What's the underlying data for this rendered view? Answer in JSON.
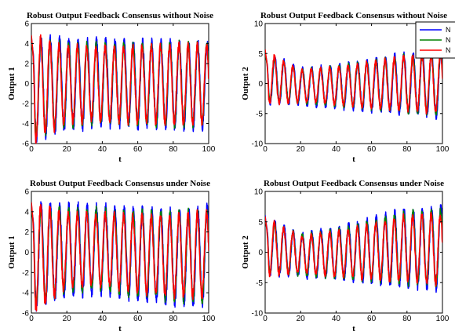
{
  "chart_data": [
    {
      "type": "line",
      "title": "Robust Output Feedback Consensus without Noise",
      "xlabel": "t",
      "ylabel": "Output 1",
      "xlim": [
        0,
        100
      ],
      "ylim": [
        -6,
        6
      ],
      "xticks": [
        0,
        20,
        40,
        60,
        80,
        100
      ],
      "yticks": [
        -6,
        -4,
        -2,
        0,
        2,
        4,
        6
      ],
      "legend": null,
      "model": {
        "period": 5.2,
        "decay": 0.05,
        "amp0": 5.0,
        "ampEnd": 3.9
      },
      "series": [
        {
          "color": "#0000ff",
          "peaks": [
            4.5,
            4.4,
            4.3,
            4.2,
            4.1,
            4.0
          ],
          "troughs": [
            -5.5,
            -4.5,
            -4.2,
            -4.3,
            -4.4,
            -4.3
          ],
          "phase": 0.3
        },
        {
          "color": "#008000",
          "peaks": [
            4.2,
            3.9,
            3.8,
            3.8,
            3.9,
            3.9
          ],
          "troughs": [
            -5.3,
            -4.1,
            -3.9,
            -4.0,
            -4.1,
            -4.0
          ],
          "phase": 0.15
        },
        {
          "color": "#ff0000",
          "peaks": [
            4.6,
            3.7,
            3.6,
            3.6,
            3.8,
            3.8
          ],
          "troughs": [
            -5.8,
            -3.8,
            -3.6,
            -3.8,
            -3.9,
            -3.9
          ],
          "phase": 0.0
        }
      ]
    },
    {
      "type": "line",
      "title": "Robust Output Feedback Consensus without Noise",
      "xlabel": "t",
      "ylabel": "Output 2",
      "xlim": [
        0,
        100
      ],
      "ylim": [
        -10,
        10
      ],
      "xticks": [
        0,
        20,
        40,
        60,
        80,
        100
      ],
      "yticks": [
        -10,
        -5,
        0,
        5,
        10
      ],
      "legend": {
        "placement": "top-right",
        "entries": [
          "N",
          "N",
          "N"
        ]
      },
      "model": {
        "period": 5.2
      },
      "series": [
        {
          "color": "#0000ff",
          "peaks": [
            5.2,
            2.5,
            3.0,
            4.0,
            5.0,
            5.5
          ],
          "troughs": [
            -3.2,
            -3.5,
            -4.0,
            -4.5,
            -5.0,
            -5.5
          ],
          "phase": 0.3
        },
        {
          "color": "#008000",
          "peaks": [
            5.0,
            2.3,
            2.8,
            3.7,
            4.6,
            5.1
          ],
          "troughs": [
            -3.0,
            -3.2,
            -3.6,
            -4.1,
            -4.6,
            -5.0
          ],
          "phase": 0.15
        },
        {
          "color": "#ff0000",
          "peaks": [
            5.4,
            2.2,
            2.7,
            3.5,
            4.4,
            4.9
          ],
          "troughs": [
            -3.4,
            -3.0,
            -3.4,
            -3.9,
            -4.4,
            -4.8
          ],
          "phase": 0.0
        }
      ]
    },
    {
      "type": "line",
      "title": "Robust Output Feedback Consensus under Noise",
      "xlabel": "t",
      "ylabel": "Output 1",
      "xlim": [
        0,
        100
      ],
      "ylim": [
        -6,
        6
      ],
      "xticks": [
        0,
        20,
        40,
        60,
        80,
        100
      ],
      "yticks": [
        -6,
        -4,
        -2,
        0,
        2,
        4,
        6
      ],
      "legend": null,
      "model": {
        "period": 5.2
      },
      "series": [
        {
          "color": "#0000ff",
          "peaks": [
            4.6,
            4.6,
            4.5,
            4.3,
            4.0,
            4.4
          ],
          "troughs": [
            -5.6,
            -4.2,
            -4.0,
            -4.6,
            -5.0,
            -5.2
          ],
          "phase": 0.3
        },
        {
          "color": "#008000",
          "peaks": [
            4.3,
            4.2,
            4.1,
            3.9,
            3.8,
            4.0
          ],
          "troughs": [
            -5.3,
            -3.8,
            -3.6,
            -4.2,
            -4.6,
            -4.8
          ],
          "phase": 0.15
        },
        {
          "color": "#ff0000",
          "peaks": [
            4.7,
            3.8,
            3.7,
            3.5,
            3.5,
            3.9
          ],
          "troughs": [
            -5.9,
            -3.4,
            -3.2,
            -3.8,
            -4.2,
            -4.4
          ],
          "phase": 0.0
        }
      ]
    },
    {
      "type": "line",
      "title": "Robust Output Feedback Consensus under Noise",
      "xlabel": "t",
      "ylabel": "Output 2",
      "xlim": [
        0,
        100
      ],
      "ylim": [
        -10,
        10
      ],
      "xticks": [
        0,
        20,
        40,
        60,
        80,
        100
      ],
      "yticks": [
        -10,
        -5,
        0,
        5,
        10
      ],
      "legend": null,
      "model": {
        "period": 5.2
      },
      "series": [
        {
          "color": "#0000ff",
          "peaks": [
            5.8,
            3.0,
            4.0,
            5.5,
            7.0,
            7.4
          ],
          "troughs": [
            -3.5,
            -4.0,
            -4.5,
            -5.0,
            -5.5,
            -6.2
          ],
          "phase": 0.3
        },
        {
          "color": "#008000",
          "peaks": [
            5.5,
            2.8,
            3.6,
            5.0,
            6.4,
            6.8
          ],
          "troughs": [
            -3.3,
            -3.7,
            -4.1,
            -4.6,
            -5.0,
            -5.6
          ],
          "phase": 0.15
        },
        {
          "color": "#ff0000",
          "peaks": [
            5.6,
            2.6,
            3.3,
            4.6,
            5.9,
            6.2
          ],
          "troughs": [
            -3.6,
            -3.4,
            -3.8,
            -4.3,
            -4.7,
            -5.2
          ],
          "phase": 0.0
        }
      ]
    }
  ]
}
